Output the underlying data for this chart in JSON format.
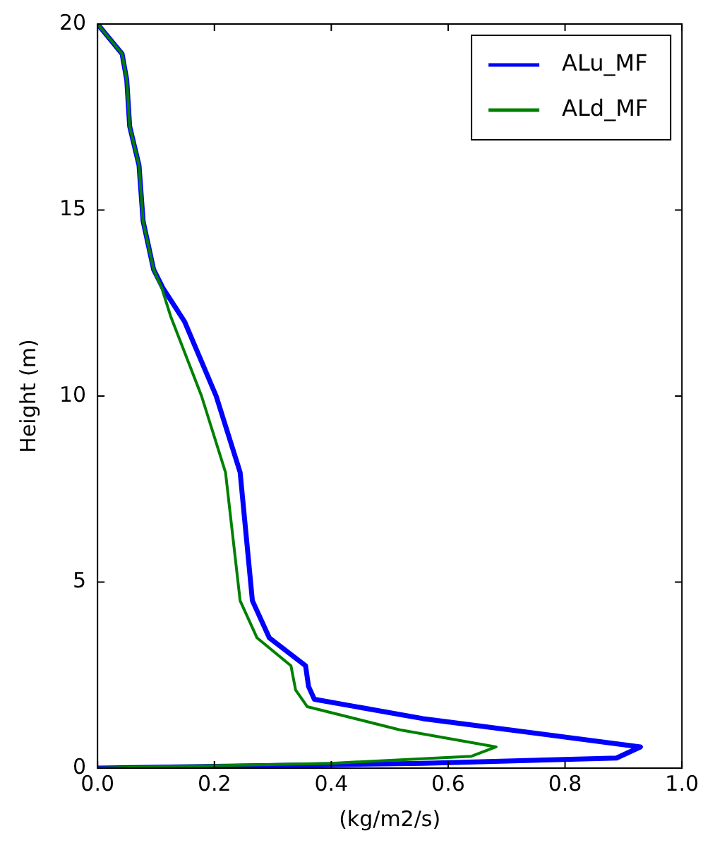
{
  "chart_data": {
    "type": "line",
    "xlabel": "(kg/m2/s)",
    "ylabel": "Height (m)",
    "xlim": [
      0,
      1
    ],
    "ylim": [
      0,
      20
    ],
    "xticks": [
      {
        "value": 0,
        "label": "0.0"
      },
      {
        "value": 0.2,
        "label": "0.2"
      },
      {
        "value": 0.4,
        "label": "0.4"
      },
      {
        "value": 0.6,
        "label": "0.6"
      },
      {
        "value": 0.8,
        "label": "0.8"
      },
      {
        "value": 1,
        "label": "1.0"
      }
    ],
    "yticks": [
      0,
      5,
      10,
      15,
      20
    ],
    "grid": false,
    "legend": "top right",
    "marker": "none",
    "line_style": "solid",
    "series": [
      {
        "name": "ALu_MF",
        "color": "#0000ff",
        "x": [
          0,
          0.557,
          0.888,
          0.929,
          0.557,
          0.371,
          0.361,
          0.356,
          0.294,
          0.265,
          0.244,
          0.203,
          0.149,
          0.112,
          0.096,
          0.078,
          0.071,
          0.055,
          0.05,
          0.042,
          0
        ],
        "values": [
          0,
          0.13,
          0.27,
          0.57,
          1.33,
          1.85,
          2.2,
          2.75,
          3.5,
          4.5,
          7.95,
          10,
          12,
          12.9,
          13.4,
          14.7,
          16.2,
          17.25,
          18.5,
          19.2,
          20
        ]
      },
      {
        "name": "ALd_MF",
        "color": "#008000",
        "x": [
          0,
          0.4,
          0.64,
          0.682,
          0.517,
          0.359,
          0.339,
          0.331,
          0.273,
          0.244,
          0.219,
          0.178,
          0.125,
          0.11,
          0.096,
          0.078,
          0.071,
          0.055,
          0.05,
          0.042,
          0
        ],
        "values": [
          0,
          0.13,
          0.32,
          0.57,
          1.03,
          1.65,
          2.1,
          2.75,
          3.5,
          4.5,
          7.95,
          10,
          12.15,
          12.9,
          13.4,
          14.7,
          16.2,
          17.25,
          18.5,
          19.2,
          20
        ]
      }
    ]
  }
}
